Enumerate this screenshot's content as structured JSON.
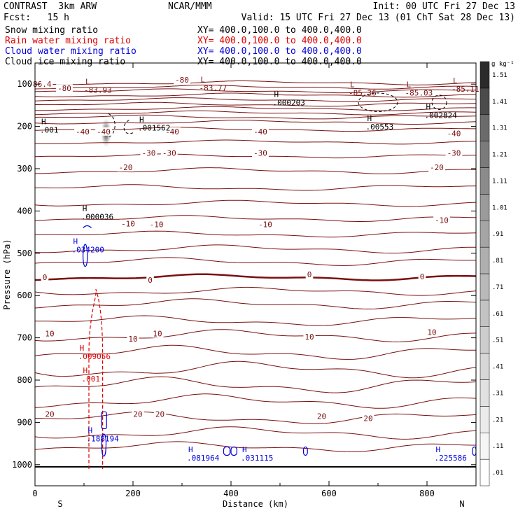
{
  "header": {
    "model": "CONTRAST  3km ARW",
    "center": "NCAR/MMM",
    "init": "Init: 00 UTC Fri 27 Dec 13",
    "fcst": "Fcst:   15 h",
    "valid": "Valid: 15 UTC Fri 27 Dec 13 (01 ChT Sat 28 Dec 13)",
    "fields": [
      {
        "name": "Snow mixing ratio",
        "xy": "XY= 400.0,100.0 to 400.0,400.0",
        "color": "#000000"
      },
      {
        "name": "Rain water mixing ratio",
        "xy": "XY= 400.0,100.0 to 400.0,400.0",
        "color": "#dd0000"
      },
      {
        "name": "Cloud water mixing ratio",
        "xy": "XY= 400.0,100.0 to 400.0,400.0",
        "color": "#0000dd"
      },
      {
        "name": "Cloud ice mixing ratio",
        "xy": "XY= 400.0,100.0 to 400.0,400.0",
        "color": "#000000"
      }
    ]
  },
  "chart_data": {
    "type": "cross-section contour",
    "xlabel": "Distance (km)",
    "ylabel": "Pressure (hPa)",
    "xlim": [
      0,
      900
    ],
    "ylim": [
      1050,
      50
    ],
    "xticks": [
      0,
      200,
      400,
      600,
      800
    ],
    "yticks": [
      100,
      200,
      300,
      400,
      500,
      600,
      700,
      800,
      900,
      1000
    ],
    "x_endpoints": {
      "left": "S",
      "right": "N"
    },
    "colorbar": {
      "unit": "g kg⁻¹",
      "levels": [
        ".01",
        ".11",
        ".21",
        ".31",
        ".41",
        ".51",
        ".61",
        ".71",
        ".81",
        ".91",
        "1.01",
        "1.11",
        "1.21",
        "1.31",
        "1.41",
        "1.51"
      ],
      "colors": [
        "#ffffff",
        "#f5f5f5",
        "#ebebeb",
        "#e1e1e1",
        "#d7d7d7",
        "#cdcdcd",
        "#c3c3c3",
        "#b9b9b9",
        "#afafaf",
        "#a5a5a5",
        "#9b9b9b",
        "#8b8b8b",
        "#7b7b7b",
        "#6b6b6b",
        "#4b4b4b",
        "#2b2b2b"
      ]
    },
    "temperature_contour_color": "#7a1010",
    "temperature_contours": [
      {
        "p": 97,
        "amp": 2,
        "phase": 0.2
      },
      {
        "p": 107,
        "amp": 2,
        "phase": 1.1
      },
      {
        "p": 116,
        "amp": 2,
        "phase": 2.0
      },
      {
        "p": 126,
        "amp": 2,
        "phase": 0.5
      },
      {
        "p": 137,
        "amp": 2,
        "phase": 1.7
      },
      {
        "p": 148,
        "amp": 2,
        "phase": 2.4
      },
      {
        "p": 158,
        "amp": 2,
        "phase": 0.9
      },
      {
        "p": 168,
        "amp": 2,
        "phase": 1.3
      },
      {
        "p": 178,
        "amp": 2,
        "phase": 2.6
      },
      {
        "p": 190,
        "amp": 2,
        "phase": 0.3
      },
      {
        "p": 207,
        "amp": 2,
        "phase": 1.8
      },
      {
        "p": 237,
        "amp": 2,
        "phase": 0.6
      },
      {
        "p": 270,
        "amp": 2,
        "phase": 2.1
      },
      {
        "p": 305,
        "amp": 3,
        "phase": 1.0
      },
      {
        "p": 345,
        "amp": 3,
        "phase": 2.9
      },
      {
        "p": 382,
        "amp": 3,
        "phase": 0.4
      },
      {
        "p": 418,
        "amp": 3,
        "phase": 1.6
      },
      {
        "p": 455,
        "amp": 3,
        "phase": 2.3
      },
      {
        "p": 490,
        "amp": 4,
        "phase": 0.8
      },
      {
        "p": 520,
        "amp": 4,
        "phase": 2.0
      },
      {
        "p": 557,
        "amp": 3,
        "phase": 1.2,
        "bold": true
      },
      {
        "p": 590,
        "amp": 4,
        "phase": 0.1
      },
      {
        "p": 620,
        "amp": 5,
        "phase": 1.4
      },
      {
        "p": 660,
        "amp": 5,
        "phase": 2.6
      },
      {
        "p": 695,
        "amp": 6,
        "phase": 0.7
      },
      {
        "p": 735,
        "amp": 7,
        "phase": 1.9
      },
      {
        "p": 775,
        "amp": 8,
        "phase": 0.3
      },
      {
        "p": 812,
        "amp": 8,
        "phase": 2.2
      },
      {
        "p": 850,
        "amp": 7,
        "phase": 1.1
      },
      {
        "p": 890,
        "amp": 6,
        "phase": 2.7
      },
      {
        "p": 925,
        "amp": 6,
        "phase": 0.5
      },
      {
        "p": 958,
        "amp": 5,
        "phase": 1.8
      }
    ],
    "terrain_p": 1005,
    "temperature_labels": [
      {
        "x": 10,
        "p": 100,
        "text": "-86.4"
      },
      {
        "x": 60,
        "p": 110,
        "text": "-80"
      },
      {
        "x": 300,
        "p": 90,
        "text": "-80"
      },
      {
        "x": 97,
        "p": 212,
        "text": "-40"
      },
      {
        "x": 140,
        "p": 212,
        "text": "-40"
      },
      {
        "x": 280,
        "p": 212,
        "text": "-40"
      },
      {
        "x": 460,
        "p": 212,
        "text": "-40"
      },
      {
        "x": 855,
        "p": 216,
        "text": "-40"
      },
      {
        "x": 232,
        "p": 263,
        "text": "-30"
      },
      {
        "x": 274,
        "p": 263,
        "text": "-30"
      },
      {
        "x": 460,
        "p": 263,
        "text": "-30"
      },
      {
        "x": 855,
        "p": 263,
        "text": "-30"
      },
      {
        "x": 185,
        "p": 297,
        "text": "-20"
      },
      {
        "x": 820,
        "p": 297,
        "text": "-20"
      },
      {
        "x": 190,
        "p": 430,
        "text": "-10"
      },
      {
        "x": 248,
        "p": 432,
        "text": "-10"
      },
      {
        "x": 470,
        "p": 432,
        "text": "-10"
      },
      {
        "x": 830,
        "p": 422,
        "text": "-10"
      },
      {
        "x": 20,
        "p": 557,
        "text": "0"
      },
      {
        "x": 235,
        "p": 563,
        "text": "0"
      },
      {
        "x": 560,
        "p": 550,
        "text": "0"
      },
      {
        "x": 790,
        "p": 555,
        "text": "0"
      },
      {
        "x": 30,
        "p": 690,
        "text": "10"
      },
      {
        "x": 200,
        "p": 702,
        "text": "10"
      },
      {
        "x": 250,
        "p": 690,
        "text": "10"
      },
      {
        "x": 560,
        "p": 697,
        "text": "10"
      },
      {
        "x": 810,
        "p": 687,
        "text": "10"
      },
      {
        "x": 30,
        "p": 880,
        "text": "20"
      },
      {
        "x": 210,
        "p": 880,
        "text": "20"
      },
      {
        "x": 255,
        "p": 880,
        "text": "20"
      },
      {
        "x": 585,
        "p": 885,
        "text": "20"
      },
      {
        "x": 680,
        "p": 890,
        "text": "20"
      }
    ],
    "extrema": [
      {
        "kind": "L",
        "value": "-83.93",
        "x": 100,
        "p": 120,
        "color": "#7a1010"
      },
      {
        "kind": "L",
        "value": "-83.77",
        "x": 335,
        "p": 115,
        "color": "#7a1010"
      },
      {
        "kind": "L",
        "value": "-85.36",
        "x": 640,
        "p": 127,
        "color": "#7a1010"
      },
      {
        "kind": "L",
        "value": "-85.03",
        "x": 755,
        "p": 127,
        "color": "#7a1010"
      },
      {
        "kind": "L",
        "value": "-85.11",
        "x": 850,
        "p": 118,
        "color": "#7a1010"
      },
      {
        "kind": "H",
        "value": ".000203",
        "x": 485,
        "p": 150,
        "color": "#000000"
      },
      {
        "kind": "H",
        "value": ".00553",
        "x": 675,
        "p": 207,
        "color": "#000000"
      },
      {
        "kind": "H",
        "value": ".002824",
        "x": 795,
        "p": 180,
        "color": "#000000"
      },
      {
        "kind": "H",
        "value": ".001562",
        "x": 210,
        "p": 210,
        "color": "#000000"
      },
      {
        "kind": "H",
        "value": ".001",
        "x": 10,
        "p": 215,
        "color": "#000000"
      },
      {
        "kind": "H",
        "value": ".000036",
        "x": 94,
        "p": 420,
        "color": "#000000"
      },
      {
        "kind": "H",
        "value": ".034200",
        "x": 75,
        "p": 498,
        "color": "#0000dd"
      },
      {
        "kind": "H",
        "value": ".009056",
        "x": 88,
        "p": 750,
        "color": "#dd0000"
      },
      {
        "kind": "H",
        "value": ".001",
        "x": 95,
        "p": 803,
        "color": "#dd0000"
      },
      {
        "kind": "H",
        "value": ".188194",
        "x": 105,
        "p": 945,
        "color": "#0000dd"
      },
      {
        "kind": "H",
        "value": ".081964",
        "x": 310,
        "p": 990,
        "color": "#0000dd"
      },
      {
        "kind": "H",
        "value": ".031115",
        "x": 420,
        "p": 990,
        "color": "#0000dd"
      },
      {
        "kind": "H",
        "value": ".225586",
        "x": 815,
        "p": 990,
        "color": "#0000dd"
      }
    ],
    "snow_max_region": {
      "x": 145,
      "p": 215,
      "sx": 11,
      "sp": 35,
      "peak": 1.2
    }
  }
}
